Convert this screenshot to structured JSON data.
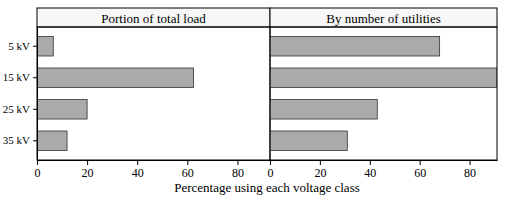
{
  "chart_data": [
    {
      "type": "bar",
      "orientation": "horizontal",
      "title": "Portion of total load",
      "xlabel": "Percentage using each voltage class",
      "categories": [
        "5 kV",
        "15 kV",
        "25 kV",
        "35 kV"
      ],
      "values": [
        6.5,
        62.5,
        20,
        12
      ],
      "color": "#aaaaaa",
      "xlim": [
        0,
        93
      ],
      "xticks": [
        0,
        20,
        40,
        60,
        80
      ],
      "grid": false
    },
    {
      "type": "bar",
      "orientation": "horizontal",
      "title": "By number of utilities",
      "categories": [
        "5 kV",
        "15 kV",
        "25 kV",
        "35 kV"
      ],
      "values": [
        68,
        91,
        43,
        31
      ],
      "color": "#aaaaaa",
      "xlim": [
        0,
        91
      ],
      "xticks": [
        0,
        20,
        40,
        60,
        80
      ],
      "grid": false,
      "tick_labels": "x"
    }
  ]
}
